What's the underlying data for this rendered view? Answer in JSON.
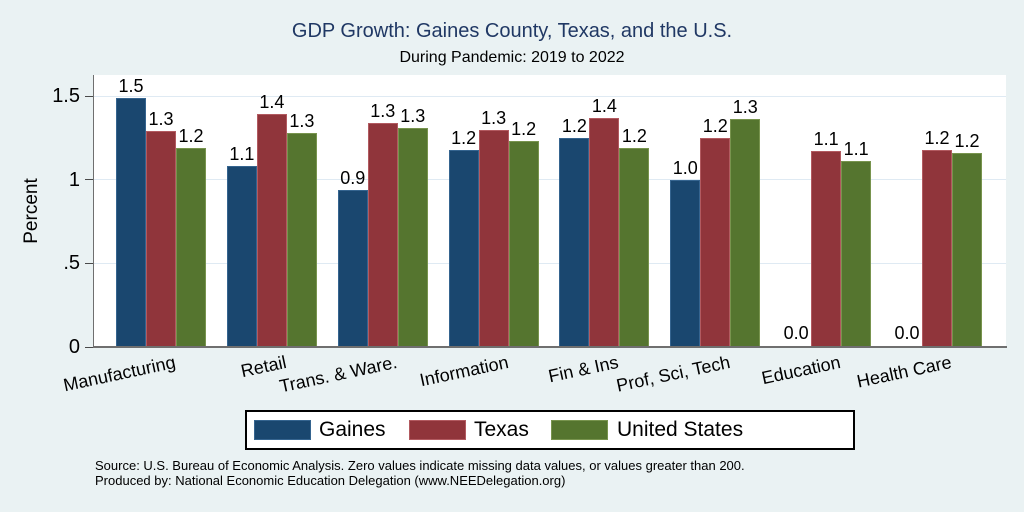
{
  "title": "GDP Growth: Gaines County, Texas, and the U.S.",
  "subtitle": "During Pandemic: 2019 to 2022",
  "ylabel": "Percent",
  "footer": {
    "line1": "Source: U.S. Bureau of Economic Analysis. Zero values indicate missing data values, or values greater than 200.",
    "line2": "Produced by: National Economic Education Delegation (www.NEEDelegation.org)"
  },
  "colors": {
    "background": "#eaf2f3",
    "plot_background": "#ffffff",
    "axis": "#6f6f6f",
    "gridline": "#dfeaf3",
    "title_text": "#203864",
    "gaines": "#1a476f",
    "texas": "#90353b",
    "united_states": "#55752f"
  },
  "chart_data": {
    "type": "bar",
    "title": "GDP Growth: Gaines County, Texas, and the U.S.",
    "subtitle": "During Pandemic: 2019 to 2022",
    "xlabel": "",
    "ylabel": "Percent",
    "ylim": [
      0,
      1.5
    ],
    "grid": true,
    "legend_position": "bottom",
    "y_ticks": [
      {
        "label": "0",
        "value": 0
      },
      {
        "label": ".5",
        "value": 0.5
      },
      {
        "label": "1",
        "value": 1
      },
      {
        "label": "1.5",
        "value": 1.5
      }
    ],
    "categories": [
      "Manufacturing",
      "Retail",
      "Trans. & Ware.",
      "Information",
      "Fin & Ins",
      "Prof, Sci, Tech",
      "Education",
      "Health Care"
    ],
    "series": [
      {
        "name": "Gaines",
        "color": "#1a476f",
        "edge_color": "#35648f",
        "values": [
          1.5,
          1.1,
          0.9,
          1.2,
          1.2,
          1.0,
          0.0,
          0.0
        ],
        "labels": [
          "1.5",
          "1.1",
          "0.9",
          "1.2",
          "1.2",
          "1.0",
          "0.0",
          "0.0"
        ],
        "bar_heights_estimated": [
          1.49,
          1.08,
          0.94,
          1.18,
          1.25,
          1.0,
          0,
          0
        ]
      },
      {
        "name": "Texas",
        "color": "#90353b",
        "edge_color": "#b25a60",
        "values": [
          1.3,
          1.4,
          1.3,
          1.3,
          1.4,
          1.2,
          1.1,
          1.2
        ],
        "labels": [
          "1.3",
          "1.4",
          "1.3",
          "1.3",
          "1.4",
          "1.2",
          "1.1",
          "1.2"
        ],
        "bar_heights_estimated": [
          1.29,
          1.39,
          1.34,
          1.3,
          1.37,
          1.25,
          1.17,
          1.18
        ]
      },
      {
        "name": "United States",
        "color": "#55752f",
        "edge_color": "#78944e",
        "values": [
          1.2,
          1.3,
          1.3,
          1.2,
          1.2,
          1.3,
          1.1,
          1.2
        ],
        "labels": [
          "1.2",
          "1.3",
          "1.3",
          "1.2",
          "1.2",
          "1.3",
          "1.1",
          "1.2"
        ],
        "bar_heights_estimated": [
          1.19,
          1.28,
          1.31,
          1.23,
          1.19,
          1.36,
          1.11,
          1.16
        ]
      }
    ]
  }
}
